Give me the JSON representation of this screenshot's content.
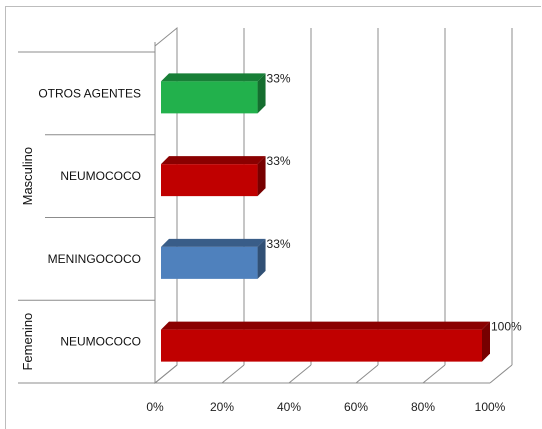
{
  "chart_data": {
    "type": "bar",
    "orientation": "horizontal",
    "three_d": true,
    "x_ticks": [
      "0%",
      "20%",
      "40%",
      "60%",
      "80%",
      "100%"
    ],
    "xlim": [
      0,
      100
    ],
    "grid": true,
    "groups": [
      {
        "name": "Masculino",
        "categories": [
          "OTROS AGENTES",
          "NEUMOCOCO",
          "MENINGOCOCO"
        ]
      },
      {
        "name": "Femenino",
        "categories": [
          "NEUMOCOCO"
        ]
      }
    ],
    "bars": [
      {
        "group": "Masculino",
        "category": "OTROS AGENTES",
        "value": 33,
        "label": "33%",
        "color": "#22b14c"
      },
      {
        "group": "Masculino",
        "category": "NEUMOCOCO",
        "value": 33,
        "label": "33%",
        "color": "#c00000"
      },
      {
        "group": "Masculino",
        "category": "MENINGOCOCO",
        "value": 33,
        "label": "33%",
        "color": "#4f81bd"
      },
      {
        "group": "Femenino",
        "category": "NEUMOCOCO",
        "value": 100,
        "label": "100%",
        "color": "#c00000"
      }
    ]
  }
}
